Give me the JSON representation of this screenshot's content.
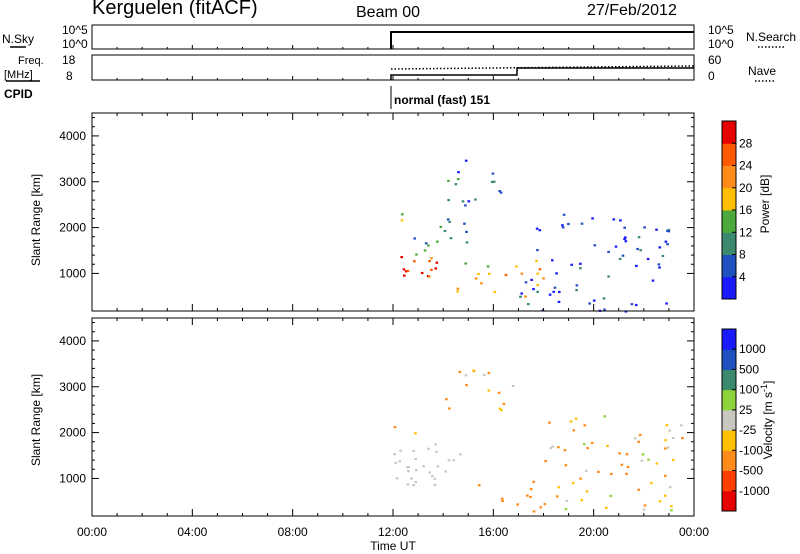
{
  "header": {
    "station": "Kerguelen (fitACF)",
    "beam": "Beam 00",
    "date": "27/Feb/2012"
  },
  "top_panels": {
    "nsky_label": "N.Sky",
    "nsky_ticks": [
      "10^5",
      "10^0"
    ],
    "nsearch_label": "N.Search",
    "nsearch_ticks": [
      "10^5",
      "10^0"
    ],
    "freq_label": "Freq.",
    "freq_unit": "[MHz]",
    "freq_ticks": [
      "18",
      "8"
    ],
    "nave_label": "Nave",
    "nave_ticks": [
      "60",
      "0"
    ],
    "cpid_label": "CPID",
    "cpid_text": "normal (fast) 151"
  },
  "colors": {
    "power": [
      "#1a1aff",
      "#2050c0",
      "#3c8a6e",
      "#4caa3c",
      "#ffbf00",
      "#ff8c1a",
      "#ff5a00",
      "#e60000"
    ],
    "velocity": [
      "#e60000",
      "#ff4000",
      "#ff8c1a",
      "#ffc000",
      "#c8c8c0",
      "#8ed23c",
      "#3c8a6e",
      "#2050c0",
      "#1a1aff"
    ]
  },
  "chart_data": [
    {
      "type": "heatmap",
      "title": "Power",
      "xlabel": "Time UT",
      "ylabel": "Slant Range [km]",
      "x_ticks": [
        "00:00",
        "04:00",
        "08:00",
        "12:00",
        "16:00",
        "20:00",
        "00:00"
      ],
      "y_ticks": [
        "1000",
        "2000",
        "3000",
        "4000"
      ],
      "xlim_hours": [
        0,
        24
      ],
      "ylim_km": [
        180,
        4500
      ],
      "colorbar_label": "Power [dB]",
      "colorbar_ticks": [
        "28",
        "24",
        "20",
        "16",
        "12",
        "8",
        "4"
      ],
      "colorbar_range": [
        0,
        30
      ],
      "scatter_regions": [
        {
          "t": [
            12.0,
            13.7
          ],
          "r": [
            850,
            1450
          ],
          "value": 26
        },
        {
          "t": [
            12.0,
            13.5
          ],
          "r": [
            1400,
            1800
          ],
          "value": 12
        },
        {
          "t": [
            12.0,
            12.8
          ],
          "r": [
            2000,
            2450
          ],
          "value": 16
        },
        {
          "t": [
            12.8,
            15.0
          ],
          "r": [
            1500,
            2500
          ],
          "value": 10
        },
        {
          "t": [
            14.5,
            18.5
          ],
          "r": [
            400,
            1300
          ],
          "value": 18
        },
        {
          "t": [
            13.8,
            16.8
          ],
          "r": [
            2500,
            3500
          ],
          "value": 6
        },
        {
          "t": [
            12.0,
            24.0
          ],
          "r": [
            190,
            260
          ],
          "value": 6
        },
        {
          "t": [
            17.0,
            23.0
          ],
          "r": [
            300,
            2400
          ],
          "value": 4
        }
      ]
    },
    {
      "type": "heatmap",
      "title": "Velocity",
      "xlabel": "Time UT",
      "ylabel": "Slant Range [km]",
      "x_ticks": [
        "00:00",
        "04:00",
        "08:00",
        "12:00",
        "16:00",
        "20:00",
        "00:00"
      ],
      "y_ticks": [
        "1000",
        "2000",
        "3000",
        "4000"
      ],
      "xlim_hours": [
        0,
        24
      ],
      "ylim_km": [
        180,
        4500
      ],
      "colorbar_label": "Velocity [m s^-1]",
      "colorbar_ticks": [
        "1000",
        "500",
        "100",
        "25",
        "-25",
        "-100",
        "-500",
        "-1000"
      ],
      "scatter_regions": [
        {
          "t": [
            12.0,
            13.8
          ],
          "r": [
            800,
            1800
          ],
          "value": 0
        },
        {
          "t": [
            13.8,
            15.0
          ],
          "r": [
            900,
            1600
          ],
          "value": 0
        },
        {
          "t": [
            15.3,
            18.0
          ],
          "r": [
            300,
            900
          ],
          "value": -200
        },
        {
          "t": [
            12.0,
            13.0
          ],
          "r": [
            2000,
            2400
          ],
          "value": -100
        },
        {
          "t": [
            14.0,
            16.8
          ],
          "r": [
            2400,
            3500
          ],
          "value": -100
        },
        {
          "t": [
            17.5,
            23.5
          ],
          "r": [
            300,
            2400
          ],
          "value": -100
        }
      ]
    }
  ]
}
